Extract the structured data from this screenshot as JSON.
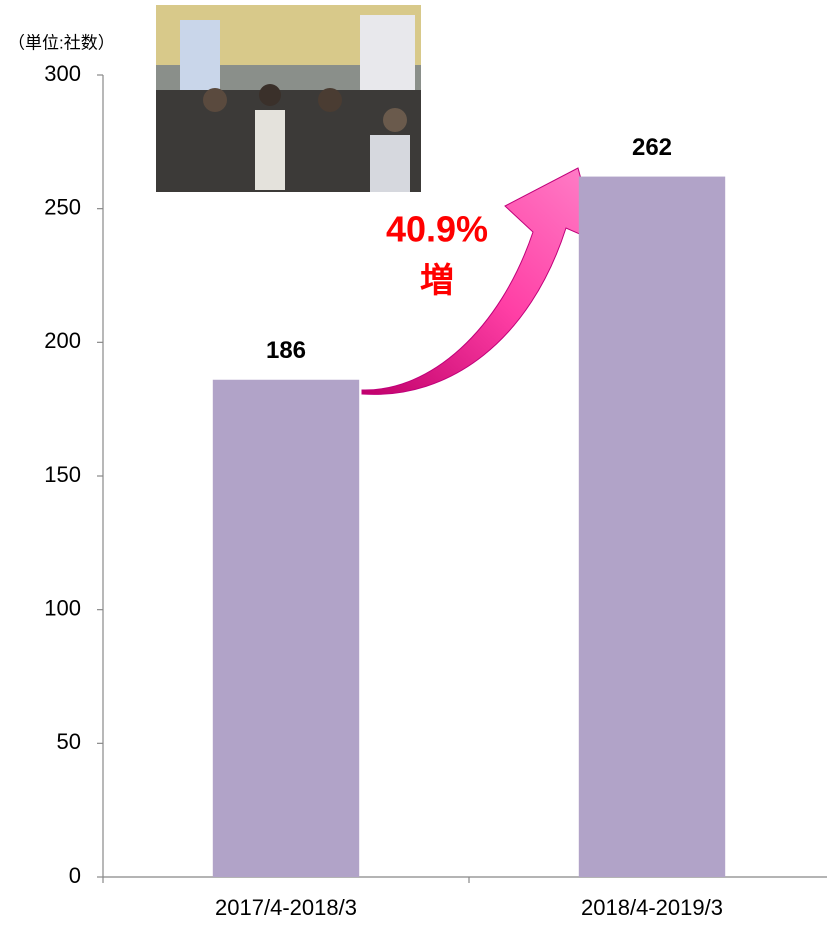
{
  "chart_data": {
    "type": "bar",
    "y_label": "（単位:社数）",
    "categories": [
      "2017/4-2018/3",
      "2018/4-2019/3"
    ],
    "values": [
      186,
      262
    ],
    "color": "#b1a3c8",
    "ylim": [
      0,
      300
    ],
    "yticks": [
      0,
      50,
      100,
      150,
      200,
      250,
      300
    ],
    "annotations": [
      "40.9%",
      "増"
    ],
    "annotation_color": "#ff0000"
  }
}
